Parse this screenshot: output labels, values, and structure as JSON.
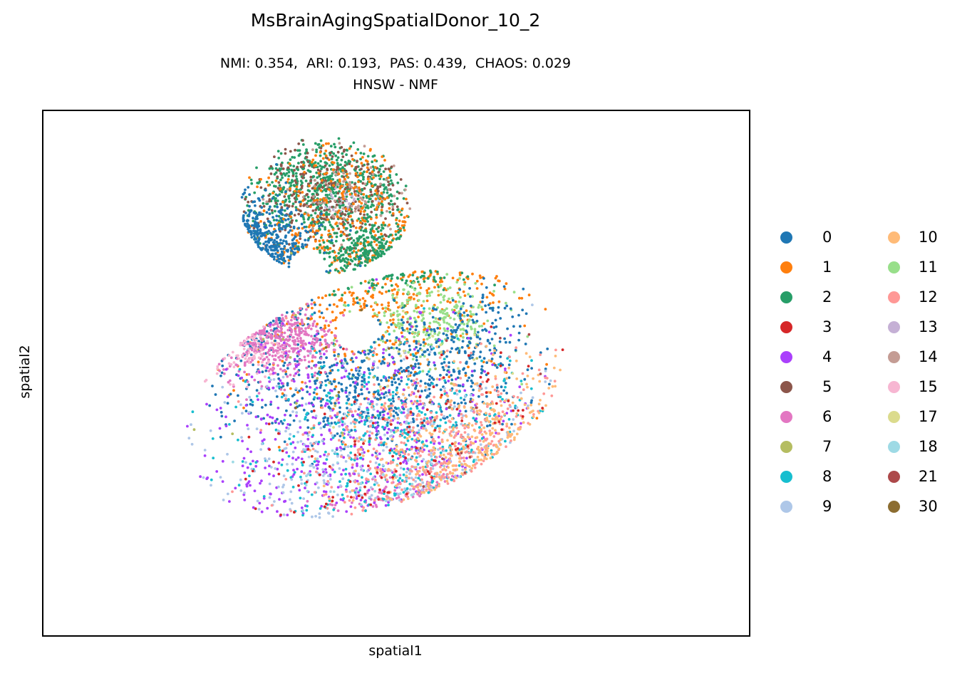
{
  "chart_data": {
    "type": "scatter",
    "title": "MsBrainAgingSpatialDonor_10_2",
    "subtitle": "NMI: 0.354,  ARI: 0.193,  PAS: 0.439,  CHAOS: 0.029\nHNSW - NMF",
    "xlabel": "spatial1",
    "ylabel": "spatial2",
    "xlim": [
      0,
      100
    ],
    "ylim": [
      0,
      100
    ],
    "grid": false,
    "legend_position": "right",
    "legend_columns": 2,
    "categories": [
      {
        "label": "0",
        "color": "#1f77b4"
      },
      {
        "label": "1",
        "color": "#ff7f0e"
      },
      {
        "label": "2",
        "color": "#279e68"
      },
      {
        "label": "3",
        "color": "#d62728"
      },
      {
        "label": "4",
        "color": "#aa40fc"
      },
      {
        "label": "5",
        "color": "#8c564b"
      },
      {
        "label": "6",
        "color": "#e377c2"
      },
      {
        "label": "7",
        "color": "#b5bd61"
      },
      {
        "label": "8",
        "color": "#17becf"
      },
      {
        "label": "9",
        "color": "#aec7e8"
      },
      {
        "label": "10",
        "color": "#ffbb78"
      },
      {
        "label": "11",
        "color": "#98df8a"
      },
      {
        "label": "12",
        "color": "#ff9896"
      },
      {
        "label": "13",
        "color": "#c5b0d5"
      },
      {
        "label": "14",
        "color": "#c49c94"
      },
      {
        "label": "15",
        "color": "#f7b6d2"
      },
      {
        "label": "17",
        "color": "#dbdb8d"
      },
      {
        "label": "18",
        "color": "#9edae5"
      },
      {
        "label": "21",
        "color": "#ad494a"
      },
      {
        "label": "30",
        "color": "#8c6d31"
      }
    ],
    "clusters": [
      {
        "label": "2",
        "cx": 40,
        "cy": 85,
        "sx": 7,
        "sy": 5,
        "n": 700
      },
      {
        "label": "5",
        "cx": 41,
        "cy": 83,
        "sx": 7,
        "sy": 6,
        "n": 320
      },
      {
        "label": "14",
        "cx": 44,
        "cy": 83,
        "sx": 5,
        "sy": 4,
        "n": 90
      },
      {
        "label": "13",
        "cx": 43,
        "cy": 83,
        "sx": 2,
        "sy": 1.5,
        "n": 25
      },
      {
        "label": "1",
        "cx": 45,
        "cy": 72,
        "sx": 11,
        "sy": 12,
        "n": 700
      },
      {
        "label": "2",
        "cx": 48,
        "cy": 72,
        "sx": 5,
        "sy": 3,
        "n": 300
      },
      {
        "label": "11",
        "cx": 55,
        "cy": 60,
        "sx": 5,
        "sy": 4,
        "n": 260
      },
      {
        "label": "0",
        "cx": 27,
        "cy": 70,
        "sx": 5,
        "sy": 6,
        "n": 380
      },
      {
        "label": "0",
        "cx": 47,
        "cy": 48,
        "sx": 10,
        "sy": 6,
        "n": 650
      },
      {
        "label": "0",
        "cx": 60,
        "cy": 56,
        "sx": 4,
        "sy": 5,
        "n": 150
      },
      {
        "label": "6",
        "cx": 33,
        "cy": 57,
        "sx": 4,
        "sy": 4,
        "n": 400
      },
      {
        "label": "6",
        "cx": 58,
        "cy": 22,
        "sx": 7,
        "sy": 4,
        "n": 100
      },
      {
        "label": "4",
        "cx": 45,
        "cy": 35,
        "sx": 12,
        "sy": 12,
        "n": 480
      },
      {
        "label": "8",
        "cx": 50,
        "cy": 35,
        "sx": 12,
        "sy": 10,
        "n": 380
      },
      {
        "label": "9",
        "cx": 50,
        "cy": 30,
        "sx": 16,
        "sy": 10,
        "n": 330
      },
      {
        "label": "12",
        "cx": 58,
        "cy": 35,
        "sx": 10,
        "sy": 8,
        "n": 420
      },
      {
        "label": "10",
        "cx": 65,
        "cy": 32,
        "sx": 9,
        "sy": 9,
        "n": 320
      },
      {
        "label": "3",
        "cx": 55,
        "cy": 25,
        "sx": 14,
        "sy": 14,
        "n": 110
      },
      {
        "label": "15",
        "cx": 28,
        "cy": 55,
        "sx": 3,
        "sy": 3,
        "n": 70
      },
      {
        "label": "7",
        "cx": 40,
        "cy": 55,
        "sx": 10,
        "sy": 10,
        "n": 25
      },
      {
        "label": "17",
        "cx": 55,
        "cy": 52,
        "sx": 8,
        "sy": 8,
        "n": 20
      },
      {
        "label": "18",
        "cx": 50,
        "cy": 30,
        "sx": 10,
        "sy": 8,
        "n": 25
      },
      {
        "label": "21",
        "cx": 60,
        "cy": 45,
        "sx": 8,
        "sy": 8,
        "n": 15
      },
      {
        "label": "30",
        "cx": 45,
        "cy": 50,
        "sx": 8,
        "sy": 8,
        "n": 10
      }
    ]
  }
}
